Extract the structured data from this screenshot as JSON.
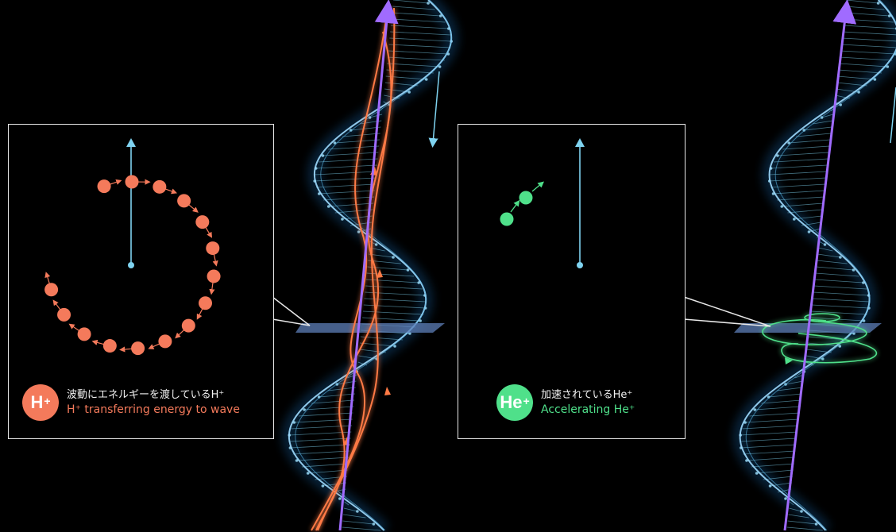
{
  "panels": {
    "h": {
      "badge": "H",
      "badge_sup": "+",
      "label_jp": "波動にエネルギーを渡しているH⁺",
      "label_en": "H⁺ transferring energy to wave",
      "color": "#f47a5b"
    },
    "he": {
      "badge": "He",
      "badge_sup": "+",
      "label_jp": "加速されているHe⁺",
      "label_en": "Accelerating He⁺",
      "color": "#4fe08a"
    }
  },
  "colors": {
    "background": "#000000",
    "field_arrow": "#7fd3f0",
    "wave": "#8fd6ff",
    "magnetic_line": "#a06bff",
    "h_ion": "#f47a5b",
    "he_ion": "#4fe08a"
  },
  "icons": [
    "field-arrow-icon",
    "ion-particle-icon"
  ]
}
